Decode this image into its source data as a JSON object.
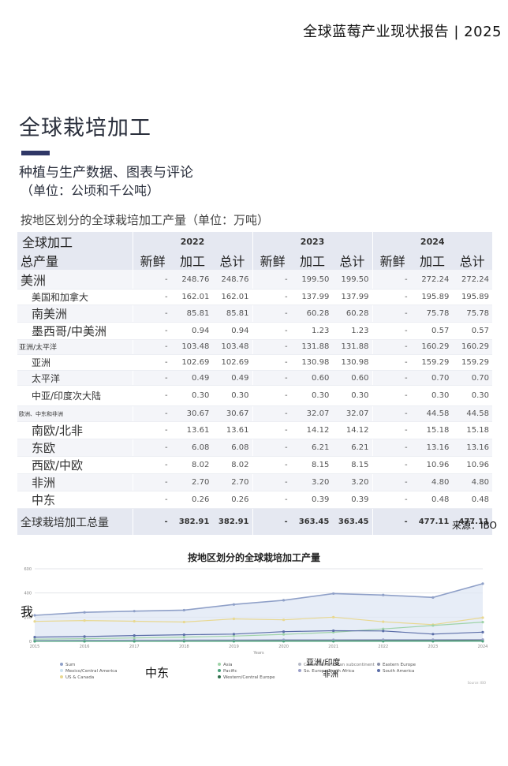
{
  "header": {
    "report_title": "全球蓝莓产业现状报告 | 2025"
  },
  "section": {
    "title": "全球栽培加工",
    "subtitle": "种植与生产数据、图表与评论",
    "unit_note": "（单位：公顷和千公吨）"
  },
  "table": {
    "caption": "按地区划分的全球栽培加工产量（单位：万吨）",
    "corner_label": "全球加工",
    "rows_label": "总产量",
    "years": [
      "2022",
      "2023",
      "2024"
    ],
    "col_labels": [
      "新鲜",
      "加工",
      "总计"
    ],
    "rows": [
      {
        "label": "美洲",
        "level": "lv0",
        "v": [
          "-",
          "248.76",
          "248.76",
          "-",
          "199.50",
          "199.50",
          "-",
          "272.24",
          "272.24"
        ]
      },
      {
        "label": "美国和加拿大",
        "level": "lv1",
        "v": [
          "-",
          "162.01",
          "162.01",
          "-",
          "137.99",
          "137.99",
          "-",
          "195.89",
          "195.89"
        ]
      },
      {
        "label": "南美洲",
        "level": "lv1b",
        "v": [
          "-",
          "85.81",
          "85.81",
          "-",
          "60.28",
          "60.28",
          "-",
          "75.78",
          "75.78"
        ]
      },
      {
        "label": "墨西哥/中美洲",
        "level": "lv1b",
        "v": [
          "-",
          "0.94",
          "0.94",
          "-",
          "1.23",
          "1.23",
          "-",
          "0.57",
          "0.57"
        ]
      },
      {
        "label": "亚洲/太平洋",
        "level": "small",
        "v": [
          "-",
          "103.48",
          "103.48",
          "-",
          "131.88",
          "131.88",
          "-",
          "160.29",
          "160.29"
        ]
      },
      {
        "label": "亚洲",
        "level": "lv1",
        "v": [
          "-",
          "102.69",
          "102.69",
          "-",
          "130.98",
          "130.98",
          "-",
          "159.29",
          "159.29"
        ]
      },
      {
        "label": "太平洋",
        "level": "lv1",
        "v": [
          "-",
          "0.49",
          "0.49",
          "-",
          "0.60",
          "0.60",
          "-",
          "0.70",
          "0.70"
        ]
      },
      {
        "label": "中亚/印度次大陆",
        "level": "lv1",
        "tall": true,
        "v": [
          "-",
          "0.30",
          "0.30",
          "-",
          "0.30",
          "0.30",
          "-",
          "0.30",
          "0.30"
        ]
      },
      {
        "label": "欧洲、中东和非洲",
        "level": "tiny",
        "v": [
          "-",
          "30.67",
          "30.67",
          "-",
          "32.07",
          "32.07",
          "-",
          "44.58",
          "44.58"
        ]
      },
      {
        "label": "南欧/北非",
        "level": "lv1b",
        "v": [
          "-",
          "13.61",
          "13.61",
          "-",
          "14.12",
          "14.12",
          "-",
          "15.18",
          "15.18"
        ]
      },
      {
        "label": "东欧",
        "level": "lv1b",
        "v": [
          "-",
          "6.08",
          "6.08",
          "-",
          "6.21",
          "6.21",
          "-",
          "13.16",
          "13.16"
        ]
      },
      {
        "label": "西欧/中欧",
        "level": "lv1b",
        "v": [
          "-",
          "8.02",
          "8.02",
          "-",
          "8.15",
          "8.15",
          "-",
          "10.96",
          "10.96"
        ]
      },
      {
        "label": "非洲",
        "level": "lv1b",
        "v": [
          "-",
          "2.70",
          "2.70",
          "-",
          "3.20",
          "3.20",
          "-",
          "4.80",
          "4.80"
        ]
      },
      {
        "label": "中东",
        "level": "lv1b",
        "v": [
          "-",
          "0.26",
          "0.26",
          "-",
          "0.39",
          "0.39",
          "-",
          "0.48",
          "0.48"
        ]
      }
    ],
    "total": {
      "label": "全球栽培加工总量",
      "v": [
        "-",
        "382.91",
        "382.91",
        "-",
        "363.45",
        "363.45",
        "-",
        "477.11",
        "477.11"
      ]
    },
    "source": "来源：IBO"
  },
  "chart_data": {
    "type": "line",
    "title": "按地区划分的全球栽培加工产量",
    "xlabel": "Years",
    "ylabel": "",
    "x": [
      2015,
      2016,
      2017,
      2018,
      2019,
      2020,
      2021,
      2022,
      2023,
      2024
    ],
    "ylim": [
      0,
      600
    ],
    "yticks": [
      0,
      200,
      400,
      600
    ],
    "grid": true,
    "legend_position": "bottom",
    "series": [
      {
        "name": "Sum",
        "color": "#8fa0c8",
        "area": true,
        "values": [
          215,
          240,
          250,
          258,
          305,
          340,
          395,
          383,
          363,
          477
        ]
      },
      {
        "name": "US & Canada",
        "color": "#e8d890",
        "values": [
          165,
          172,
          166,
          160,
          186,
          178,
          200,
          162,
          138,
          196
        ]
      },
      {
        "name": "Asia",
        "color": "#9fd3a8",
        "values": [
          18,
          22,
          28,
          35,
          44,
          58,
          75,
          103,
          131,
          159
        ]
      },
      {
        "name": "South America",
        "color": "#5c6ea8",
        "values": [
          35,
          40,
          48,
          55,
          60,
          80,
          88,
          86,
          60,
          76
        ]
      },
      {
        "name": "Eastern Europe",
        "color": "#8a90a8",
        "values": [
          2,
          2,
          3,
          3,
          4,
          4,
          5,
          6,
          6,
          13
        ]
      },
      {
        "name": "Western/Central Europe",
        "color": "#2f6e4a",
        "values": [
          4,
          5,
          5,
          6,
          6,
          7,
          7,
          8,
          8,
          11
        ]
      },
      {
        "name": "So. Europe/North Africa",
        "color": "#9a9ec8",
        "values": [
          8,
          9,
          10,
          11,
          12,
          13,
          13,
          14,
          14,
          15
        ]
      },
      {
        "name": "Mexico/Central America",
        "color": "#cde3f0",
        "values": [
          1,
          1,
          1,
          1,
          1,
          1,
          1,
          1,
          1,
          1
        ]
      },
      {
        "name": "Pacific",
        "color": "#4aa07a",
        "values": [
          0.4,
          0.4,
          0.4,
          0.5,
          0.5,
          0.5,
          0.5,
          0.5,
          0.6,
          0.7
        ]
      }
    ],
    "legend_rows": [
      [
        "Sum",
        "Asia",
        "",
        "Eastern Europe"
      ],
      [
        "Mexico/Central America",
        "Pacific",
        "So. Europe/North Africa",
        "South America"
      ],
      [
        "US & Canada",
        "Western/Central Europe",
        "",
        ""
      ]
    ],
    "legend_hidden_label": "Central Asia/Indian subcontinent",
    "footnote": "Source: IBO"
  },
  "overlays": {
    "left_char": "我",
    "legend_middle_east": "中东",
    "legend_central_asia": "亚洲/印度",
    "legend_africa": "非洲"
  }
}
